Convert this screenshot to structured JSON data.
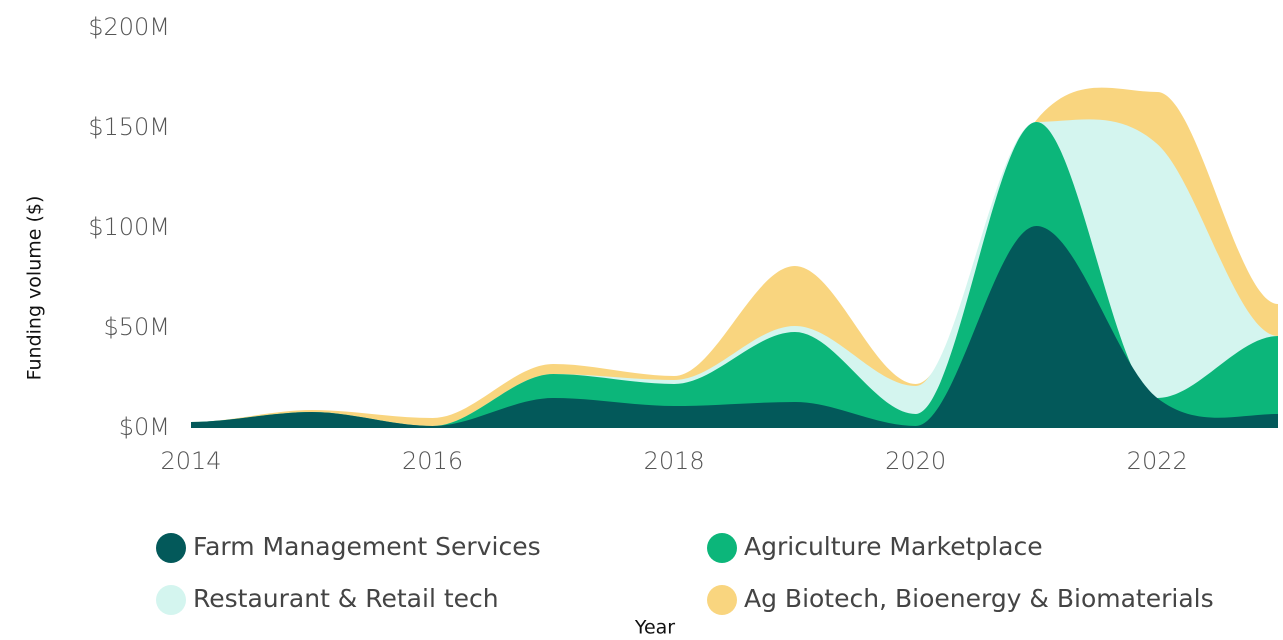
{
  "chart_data": {
    "type": "area",
    "stacked": true,
    "x": [
      2014,
      2015,
      2016,
      2017,
      2018,
      2019,
      2020,
      2021,
      2022,
      2023
    ],
    "xlim": [
      2014,
      2023
    ],
    "xticks": [
      2014,
      2016,
      2018,
      2020,
      2022
    ],
    "ylim": [
      0,
      200
    ],
    "yticks": [
      {
        "value": 0,
        "label": "$0M"
      },
      {
        "value": 50,
        "label": "$50M"
      },
      {
        "value": 100,
        "label": "$100M"
      },
      {
        "value": 150,
        "label": "$150M"
      },
      {
        "value": 200,
        "label": "$200M"
      }
    ],
    "y_label": "Funding volume ($)",
    "x_label": "Year",
    "series": [
      {
        "name": "Farm Management Services",
        "color": "#03595a",
        "values": [
          3,
          8,
          1,
          15,
          11,
          13,
          1,
          101,
          15,
          7
        ]
      },
      {
        "name": "Agriculture Marketplace",
        "color": "#0cb67a",
        "values": [
          0,
          0,
          0,
          12,
          11,
          35,
          6,
          52,
          0,
          39
        ]
      },
      {
        "name": "Restaurant & Retail tech",
        "color": "#d4f5ef",
        "values": [
          0,
          0,
          0,
          0,
          2,
          3,
          14,
          0,
          127,
          0
        ]
      },
      {
        "name": "Ag Biotech, Bioenergy & Biomaterials",
        "color": "#f9d57f",
        "values": [
          0,
          1,
          4,
          5,
          2,
          30,
          1,
          1,
          26,
          16
        ]
      }
    ]
  }
}
